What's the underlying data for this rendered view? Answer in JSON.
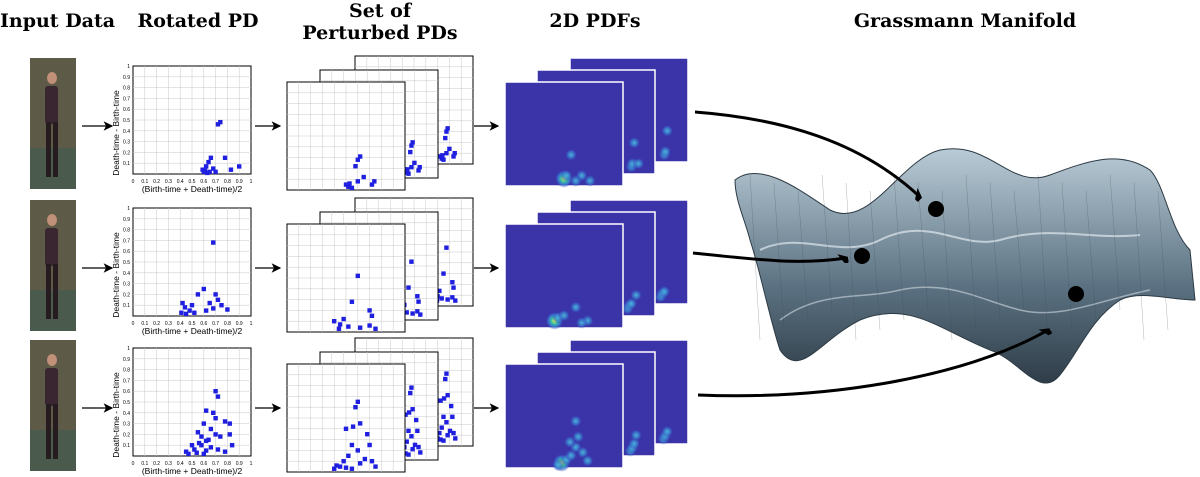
{
  "headers": {
    "input": "Input Data",
    "rotated": "Rotated PD",
    "set_line1": "Set of",
    "set_line2": "Perturbed PDs",
    "pdfs": "2D PDFs",
    "grassmann": "Grassmann Manifold"
  },
  "axes": {
    "ylabel": "Death-time - Birth-time",
    "xlabel": "(Birth-time + Death-time)/2",
    "ticks": [
      "0",
      "0.1",
      "0.2",
      "0.3",
      "0.4",
      "0.5",
      "0.6",
      "0.7",
      "0.8",
      "0.9",
      "1"
    ]
  },
  "colors": {
    "point": "#1f1fe0",
    "pdf_bg": "#3a34a8",
    "grid": "#c8c8c8",
    "manifold": "#6a8090"
  },
  "rows": [
    {
      "photo_icon": "person-standing-photo",
      "rotated_points": [
        [
          0.72,
          0.46
        ],
        [
          0.74,
          0.48
        ],
        [
          0.62,
          0.07
        ],
        [
          0.64,
          0.11
        ],
        [
          0.66,
          0.15
        ],
        [
          0.68,
          0.05
        ],
        [
          0.61,
          0.03
        ],
        [
          0.6,
          0.02
        ],
        [
          0.63,
          0.01
        ],
        [
          0.7,
          0.02
        ],
        [
          0.78,
          0.15
        ],
        [
          0.83,
          0.04
        ],
        [
          0.9,
          0.07
        ],
        [
          0.59,
          0.04
        ],
        [
          0.65,
          0.02
        ]
      ],
      "perturbed_points": [
        [
          0.6,
          0.28
        ],
        [
          0.62,
          0.31
        ],
        [
          0.58,
          0.22
        ],
        [
          0.5,
          0.05
        ],
        [
          0.52,
          0.03
        ],
        [
          0.55,
          0.02
        ],
        [
          0.53,
          0.06
        ],
        [
          0.6,
          0.08
        ],
        [
          0.65,
          0.12
        ],
        [
          0.72,
          0.05
        ],
        [
          0.74,
          0.08
        ]
      ],
      "pdf_blobs": [
        [
          0.5,
          0.07
        ],
        [
          0.52,
          0.1
        ],
        [
          0.56,
          0.3
        ],
        [
          0.65,
          0.1
        ],
        [
          0.72,
          0.05
        ],
        [
          0.6,
          0.05
        ]
      ]
    },
    {
      "photo_icon": "person-sitting-photo",
      "rotated_points": [
        [
          0.68,
          0.68
        ],
        [
          0.6,
          0.25
        ],
        [
          0.55,
          0.2
        ],
        [
          0.7,
          0.2
        ],
        [
          0.72,
          0.15
        ],
        [
          0.75,
          0.1
        ],
        [
          0.65,
          0.12
        ],
        [
          0.5,
          0.1
        ],
        [
          0.48,
          0.05
        ],
        [
          0.44,
          0.08
        ],
        [
          0.42,
          0.12
        ],
        [
          0.41,
          0.03
        ],
        [
          0.45,
          0.02
        ],
        [
          0.52,
          0.03
        ],
        [
          0.62,
          0.05
        ],
        [
          0.68,
          0.07
        ],
        [
          0.8,
          0.06
        ]
      ],
      "perturbed_points": [
        [
          0.6,
          0.52
        ],
        [
          0.55,
          0.28
        ],
        [
          0.7,
          0.2
        ],
        [
          0.72,
          0.15
        ],
        [
          0.45,
          0.07
        ],
        [
          0.44,
          0.03
        ],
        [
          0.4,
          0.1
        ],
        [
          0.48,
          0.12
        ],
        [
          0.52,
          0.05
        ],
        [
          0.62,
          0.04
        ],
        [
          0.7,
          0.06
        ],
        [
          0.75,
          0.03
        ]
      ],
      "pdf_blobs": [
        [
          0.42,
          0.07
        ],
        [
          0.45,
          0.1
        ],
        [
          0.5,
          0.12
        ],
        [
          0.6,
          0.2
        ],
        [
          0.7,
          0.07
        ],
        [
          0.65,
          0.05
        ]
      ]
    },
    {
      "photo_icon": "person-walking-photo",
      "rotated_points": [
        [
          0.7,
          0.6
        ],
        [
          0.72,
          0.55
        ],
        [
          0.68,
          0.4
        ],
        [
          0.7,
          0.35
        ],
        [
          0.78,
          0.32
        ],
        [
          0.82,
          0.3
        ],
        [
          0.62,
          0.42
        ],
        [
          0.6,
          0.3
        ],
        [
          0.66,
          0.25
        ],
        [
          0.55,
          0.22
        ],
        [
          0.58,
          0.18
        ],
        [
          0.64,
          0.15
        ],
        [
          0.7,
          0.2
        ],
        [
          0.74,
          0.18
        ],
        [
          0.82,
          0.2
        ],
        [
          0.84,
          0.1
        ],
        [
          0.5,
          0.1
        ],
        [
          0.52,
          0.06
        ],
        [
          0.54,
          0.03
        ],
        [
          0.45,
          0.04
        ],
        [
          0.47,
          0.02
        ],
        [
          0.6,
          0.02
        ],
        [
          0.62,
          0.05
        ],
        [
          0.66,
          0.08
        ],
        [
          0.72,
          0.06
        ],
        [
          0.78,
          0.04
        ],
        [
          0.58,
          0.1
        ],
        [
          0.56,
          0.12
        ],
        [
          0.62,
          0.14
        ]
      ],
      "perturbed_points": [
        [
          0.6,
          0.65
        ],
        [
          0.58,
          0.6
        ],
        [
          0.62,
          0.45
        ],
        [
          0.56,
          0.42
        ],
        [
          0.5,
          0.4
        ],
        [
          0.68,
          0.35
        ],
        [
          0.7,
          0.25
        ],
        [
          0.55,
          0.25
        ],
        [
          0.6,
          0.2
        ],
        [
          0.52,
          0.15
        ],
        [
          0.48,
          0.1
        ],
        [
          0.45,
          0.05
        ],
        [
          0.5,
          0.04
        ],
        [
          0.55,
          0.03
        ],
        [
          0.62,
          0.08
        ],
        [
          0.66,
          0.12
        ],
        [
          0.72,
          0.1
        ],
        [
          0.75,
          0.05
        ],
        [
          0.4,
          0.03
        ],
        [
          0.42,
          0.06
        ]
      ],
      "pdf_blobs": [
        [
          0.48,
          0.05
        ],
        [
          0.52,
          0.08
        ],
        [
          0.56,
          0.12
        ],
        [
          0.6,
          0.2
        ],
        [
          0.62,
          0.3
        ],
        [
          0.55,
          0.25
        ],
        [
          0.66,
          0.15
        ],
        [
          0.7,
          0.07
        ],
        [
          0.45,
          0.03
        ],
        [
          0.6,
          0.45
        ]
      ]
    }
  ],
  "manifold_points": [
    {
      "name": "manifold-point-1"
    },
    {
      "name": "manifold-point-2"
    },
    {
      "name": "manifold-point-3"
    }
  ]
}
